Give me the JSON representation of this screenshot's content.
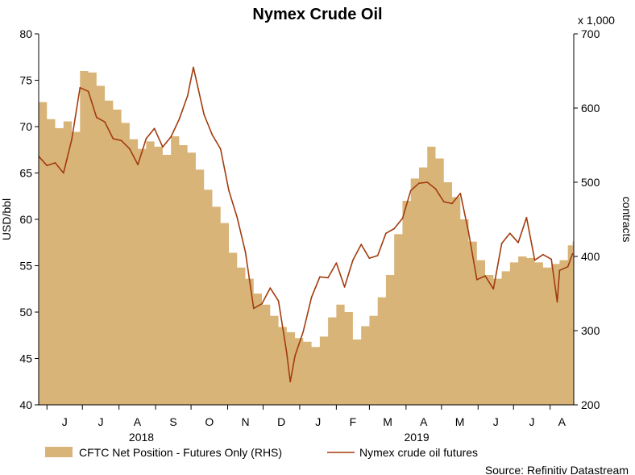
{
  "chart_data": {
    "type": "area",
    "title": "Nymex Crude Oil",
    "source": "Source: Refinitiv Datastream",
    "x_axis": {
      "months": [
        "J",
        "J",
        "A",
        "S",
        "O",
        "N",
        "D",
        "J",
        "F",
        "M",
        "A",
        "M",
        "J",
        "J",
        "A"
      ],
      "years": [
        "2018",
        "2019"
      ]
    },
    "y_left": {
      "label": "USD/bbl",
      "range": [
        40,
        80
      ],
      "ticks": [
        40,
        45,
        50,
        55,
        60,
        65,
        70,
        75,
        80
      ]
    },
    "y_right": {
      "label": "contracts",
      "multiplier": "x 1,000",
      "range": [
        200,
        700
      ],
      "ticks": [
        200,
        300,
        400,
        500,
        600,
        700
      ]
    },
    "legend": {
      "position": "bottom"
    },
    "grid": false,
    "colors": {
      "area": "#d9b479",
      "line": "#a23b0e",
      "axis": "#000000"
    },
    "series": [
      {
        "name": "CFTC Net Position - Futures Only (RHS)",
        "type": "area",
        "axis": "right",
        "points": [
          [
            "2018-05-25",
            608
          ],
          [
            "2018-06-01",
            585
          ],
          [
            "2018-06-08",
            573
          ],
          [
            "2018-06-15",
            582
          ],
          [
            "2018-06-22",
            568
          ],
          [
            "2018-06-29",
            650
          ],
          [
            "2018-07-06",
            648
          ],
          [
            "2018-07-13",
            630
          ],
          [
            "2018-07-20",
            610
          ],
          [
            "2018-07-27",
            598
          ],
          [
            "2018-08-03",
            580
          ],
          [
            "2018-08-10",
            558
          ],
          [
            "2018-08-17",
            545
          ],
          [
            "2018-08-24",
            555
          ],
          [
            "2018-08-31",
            548
          ],
          [
            "2018-09-07",
            537
          ],
          [
            "2018-09-14",
            562
          ],
          [
            "2018-09-21",
            550
          ],
          [
            "2018-09-28",
            540
          ],
          [
            "2018-10-05",
            517
          ],
          [
            "2018-10-12",
            490
          ],
          [
            "2018-10-19",
            467
          ],
          [
            "2018-10-26",
            445
          ],
          [
            "2018-11-02",
            405
          ],
          [
            "2018-11-09",
            385
          ],
          [
            "2018-11-16",
            370
          ],
          [
            "2018-11-23",
            350
          ],
          [
            "2018-11-30",
            335
          ],
          [
            "2018-12-07",
            320
          ],
          [
            "2018-12-14",
            305
          ],
          [
            "2018-12-21",
            298
          ],
          [
            "2018-12-28",
            290
          ],
          [
            "2019-01-04",
            285
          ],
          [
            "2019-01-11",
            278
          ],
          [
            "2019-01-18",
            292
          ],
          [
            "2019-01-25",
            318
          ],
          [
            "2019-02-01",
            335
          ],
          [
            "2019-02-08",
            325
          ],
          [
            "2019-02-15",
            288
          ],
          [
            "2019-02-22",
            306
          ],
          [
            "2019-03-01",
            320
          ],
          [
            "2019-03-08",
            345
          ],
          [
            "2019-03-15",
            375
          ],
          [
            "2019-03-22",
            430
          ],
          [
            "2019-03-29",
            475
          ],
          [
            "2019-04-05",
            505
          ],
          [
            "2019-04-12",
            520
          ],
          [
            "2019-04-19",
            548
          ],
          [
            "2019-04-26",
            532
          ],
          [
            "2019-05-03",
            500
          ],
          [
            "2019-05-10",
            480
          ],
          [
            "2019-05-17",
            450
          ],
          [
            "2019-05-24",
            420
          ],
          [
            "2019-05-31",
            395
          ],
          [
            "2019-06-07",
            375
          ],
          [
            "2019-06-14",
            370
          ],
          [
            "2019-06-21",
            380
          ],
          [
            "2019-06-28",
            392
          ],
          [
            "2019-07-05",
            400
          ],
          [
            "2019-07-12",
            398
          ],
          [
            "2019-07-19",
            392
          ],
          [
            "2019-07-26",
            385
          ],
          [
            "2019-08-02",
            390
          ],
          [
            "2019-08-09",
            395
          ],
          [
            "2019-08-16",
            415
          ],
          [
            "2019-08-20",
            420
          ]
        ]
      },
      {
        "name": "Nymex crude oil futures",
        "type": "line",
        "axis": "left",
        "points": [
          [
            "2018-05-25",
            66.8
          ],
          [
            "2018-06-01",
            65.8
          ],
          [
            "2018-06-08",
            66.1
          ],
          [
            "2018-06-15",
            65.0
          ],
          [
            "2018-06-22",
            68.6
          ],
          [
            "2018-06-29",
            74.2
          ],
          [
            "2018-07-06",
            73.8
          ],
          [
            "2018-07-13",
            71.0
          ],
          [
            "2018-07-20",
            70.5
          ],
          [
            "2018-07-27",
            68.7
          ],
          [
            "2018-08-03",
            68.5
          ],
          [
            "2018-08-10",
            67.6
          ],
          [
            "2018-08-17",
            65.9
          ],
          [
            "2018-08-24",
            68.7
          ],
          [
            "2018-08-31",
            69.8
          ],
          [
            "2018-09-07",
            67.8
          ],
          [
            "2018-09-14",
            68.9
          ],
          [
            "2018-09-21",
            70.8
          ],
          [
            "2018-09-28",
            73.3
          ],
          [
            "2018-10-03",
            76.4
          ],
          [
            "2018-10-12",
            71.3
          ],
          [
            "2018-10-19",
            69.1
          ],
          [
            "2018-10-26",
            67.6
          ],
          [
            "2018-11-02",
            63.1
          ],
          [
            "2018-11-09",
            60.2
          ],
          [
            "2018-11-16",
            56.5
          ],
          [
            "2018-11-23",
            50.4
          ],
          [
            "2018-11-30",
            50.9
          ],
          [
            "2018-12-07",
            52.6
          ],
          [
            "2018-12-14",
            51.2
          ],
          [
            "2018-12-21",
            45.6
          ],
          [
            "2018-12-24",
            42.5
          ],
          [
            "2018-12-28",
            45.3
          ],
          [
            "2019-01-04",
            47.9
          ],
          [
            "2019-01-11",
            51.6
          ],
          [
            "2019-01-18",
            53.8
          ],
          [
            "2019-01-25",
            53.7
          ],
          [
            "2019-02-01",
            55.3
          ],
          [
            "2019-02-08",
            52.7
          ],
          [
            "2019-02-15",
            55.6
          ],
          [
            "2019-02-22",
            57.3
          ],
          [
            "2019-03-01",
            55.8
          ],
          [
            "2019-03-08",
            56.1
          ],
          [
            "2019-03-15",
            58.5
          ],
          [
            "2019-03-22",
            59.0
          ],
          [
            "2019-03-29",
            60.1
          ],
          [
            "2019-04-05",
            63.1
          ],
          [
            "2019-04-12",
            63.9
          ],
          [
            "2019-04-19",
            64.0
          ],
          [
            "2019-04-26",
            63.3
          ],
          [
            "2019-05-03",
            61.9
          ],
          [
            "2019-05-10",
            61.7
          ],
          [
            "2019-05-17",
            62.8
          ],
          [
            "2019-05-24",
            58.6
          ],
          [
            "2019-05-31",
            53.5
          ],
          [
            "2019-06-07",
            53.9
          ],
          [
            "2019-06-14",
            52.5
          ],
          [
            "2019-06-21",
            57.4
          ],
          [
            "2019-06-28",
            58.5
          ],
          [
            "2019-07-05",
            57.5
          ],
          [
            "2019-07-12",
            60.2
          ],
          [
            "2019-07-19",
            55.6
          ],
          [
            "2019-07-26",
            56.2
          ],
          [
            "2019-08-02",
            55.7
          ],
          [
            "2019-08-07",
            51.1
          ],
          [
            "2019-08-09",
            54.5
          ],
          [
            "2019-08-16",
            54.9
          ],
          [
            "2019-08-20",
            56.3
          ]
        ]
      }
    ]
  }
}
